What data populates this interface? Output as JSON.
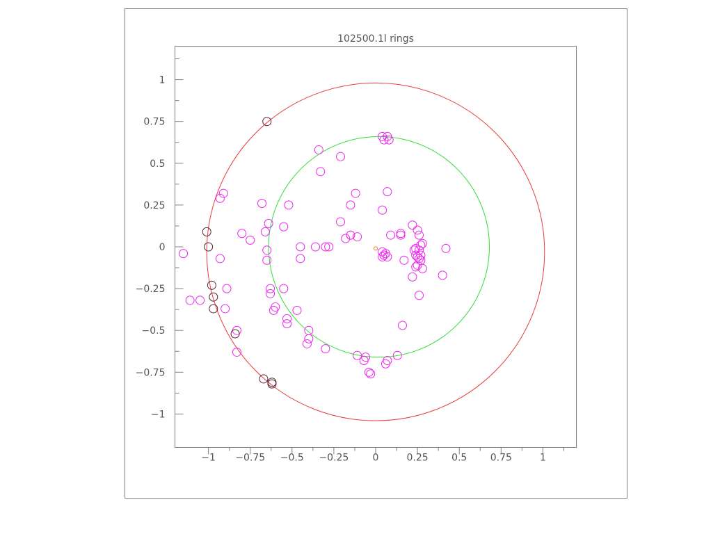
{
  "chart_data": {
    "type": "scatter",
    "title": "102500.1l rings",
    "xlabel": "",
    "ylabel": "",
    "xlim": [
      -1.2,
      1.2
    ],
    "ylim": [
      -1.2,
      1.2
    ],
    "x_ticks": [
      -1,
      -0.75,
      -0.5,
      -0.25,
      0,
      0.25,
      0.5,
      0.75,
      1
    ],
    "x_tick_labels": [
      "−1",
      "−0.75",
      "−0.5",
      "−0.25",
      "0",
      "0.25",
      "0.5",
      "0.75",
      "1"
    ],
    "y_ticks": [
      1,
      0.75,
      0.5,
      0.25,
      0,
      -0.25,
      -0.5,
      -0.75,
      -1
    ],
    "y_tick_labels": [
      "1",
      "0.75",
      "0.5",
      "0.25",
      "0",
      "−0.25",
      "−0.5",
      "−0.75",
      "−1"
    ],
    "grid": false,
    "legend": "none",
    "rings": [
      {
        "center": [
          0,
          -0.03
        ],
        "radius": 1.01,
        "color": "#e83a3a"
      },
      {
        "center": [
          0.02,
          0.0
        ],
        "radius": 0.66,
        "color": "#33dd33"
      }
    ],
    "center_marker": {
      "x": 0.0,
      "y": -0.01,
      "color": "#e07a30"
    },
    "series": [
      {
        "color": "#ee22ee",
        "points": [
          [
            -1.15,
            -0.04
          ],
          [
            -1.11,
            -0.32
          ],
          [
            -1.05,
            -0.32
          ],
          [
            -0.93,
            0.29
          ],
          [
            -0.91,
            0.32
          ],
          [
            -0.93,
            -0.07
          ],
          [
            -0.89,
            -0.25
          ],
          [
            -0.9,
            -0.37
          ],
          [
            -0.83,
            -0.5
          ],
          [
            -0.83,
            -0.63
          ],
          [
            -0.8,
            0.08
          ],
          [
            -0.75,
            0.04
          ],
          [
            -0.68,
            0.26
          ],
          [
            -0.66,
            0.09
          ],
          [
            -0.64,
            0.14
          ],
          [
            -0.65,
            -0.02
          ],
          [
            -0.65,
            -0.08
          ],
          [
            -0.63,
            -0.25
          ],
          [
            -0.63,
            -0.28
          ],
          [
            -0.61,
            -0.38
          ],
          [
            -0.6,
            -0.36
          ],
          [
            -0.55,
            0.12
          ],
          [
            -0.55,
            -0.25
          ],
          [
            -0.52,
            0.25
          ],
          [
            -0.53,
            -0.43
          ],
          [
            -0.53,
            -0.46
          ],
          [
            -0.47,
            -0.38
          ],
          [
            -0.45,
            0.0
          ],
          [
            -0.45,
            -0.07
          ],
          [
            -0.41,
            -0.58
          ],
          [
            -0.4,
            -0.55
          ],
          [
            -0.4,
            -0.5
          ],
          [
            -0.36,
            0.0
          ],
          [
            -0.34,
            0.58
          ],
          [
            -0.33,
            0.45
          ],
          [
            -0.3,
            0.0
          ],
          [
            -0.28,
            0.0
          ],
          [
            -0.3,
            -0.61
          ],
          [
            -0.21,
            0.54
          ],
          [
            -0.21,
            0.15
          ],
          [
            -0.18,
            0.05
          ],
          [
            -0.15,
            0.25
          ],
          [
            -0.15,
            0.07
          ],
          [
            -0.15,
            0.07
          ],
          [
            -0.12,
            0.32
          ],
          [
            -0.11,
            0.06
          ],
          [
            -0.11,
            -0.65
          ],
          [
            -0.07,
            -0.68
          ],
          [
            -0.06,
            -0.66
          ],
          [
            -0.04,
            -0.75
          ],
          [
            -0.03,
            -0.76
          ],
          [
            0.04,
            0.22
          ],
          [
            0.04,
            0.66
          ],
          [
            0.05,
            0.64
          ],
          [
            0.07,
            0.66
          ],
          [
            0.08,
            0.64
          ],
          [
            0.07,
            0.33
          ],
          [
            0.04,
            -0.03
          ],
          [
            0.04,
            -0.06
          ],
          [
            0.05,
            -0.05
          ],
          [
            0.06,
            -0.04
          ],
          [
            0.07,
            -0.06
          ],
          [
            0.09,
            0.07
          ],
          [
            0.06,
            -0.7
          ],
          [
            0.07,
            -0.68
          ],
          [
            0.13,
            -0.65
          ],
          [
            0.15,
            0.07
          ],
          [
            0.15,
            0.08
          ],
          [
            0.16,
            -0.47
          ],
          [
            0.17,
            -0.08
          ],
          [
            0.22,
            0.13
          ],
          [
            0.22,
            -0.18
          ],
          [
            0.23,
            -0.02
          ],
          [
            0.24,
            -0.05
          ],
          [
            0.24,
            -0.12
          ],
          [
            0.24,
            -0.01
          ],
          [
            0.25,
            0.1
          ],
          [
            0.25,
            -0.06
          ],
          [
            0.25,
            -0.11
          ],
          [
            0.26,
            0.07
          ],
          [
            0.26,
            -0.02
          ],
          [
            0.26,
            -0.07
          ],
          [
            0.27,
            -0.05
          ],
          [
            0.27,
            0.01
          ],
          [
            0.28,
            0.02
          ],
          [
            0.27,
            -0.08
          ],
          [
            0.28,
            -0.13
          ],
          [
            0.26,
            -0.29
          ],
          [
            0.4,
            -0.17
          ],
          [
            0.42,
            -0.01
          ]
        ]
      },
      {
        "color": "#5a1f2e",
        "points": [
          [
            -0.65,
            0.75
          ],
          [
            -1.01,
            0.09
          ],
          [
            -1.0,
            0.0
          ],
          [
            -0.98,
            -0.23
          ],
          [
            -0.97,
            -0.3
          ],
          [
            -0.97,
            -0.37
          ],
          [
            -0.84,
            -0.52
          ],
          [
            -0.67,
            -0.79
          ],
          [
            -0.62,
            -0.82
          ],
          [
            -0.62,
            -0.81
          ]
        ]
      }
    ]
  }
}
